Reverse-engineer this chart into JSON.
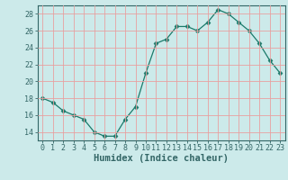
{
  "x": [
    0,
    1,
    2,
    3,
    4,
    5,
    6,
    7,
    8,
    9,
    10,
    11,
    12,
    13,
    14,
    15,
    16,
    17,
    18,
    19,
    20,
    21,
    22,
    23
  ],
  "y": [
    18,
    17.5,
    16.5,
    16,
    15.5,
    14,
    13.5,
    13.5,
    15.5,
    17,
    21,
    24.5,
    25,
    26.5,
    26.5,
    26,
    27,
    28.5,
    28,
    27,
    26,
    24.5,
    22.5,
    21
  ],
  "xlabel": "Humidex (Indice chaleur)",
  "xlim": [
    -0.5,
    23.5
  ],
  "ylim": [
    13.0,
    29.0
  ],
  "yticks": [
    14,
    16,
    18,
    20,
    22,
    24,
    26,
    28
  ],
  "xticks": [
    0,
    1,
    2,
    3,
    4,
    5,
    6,
    7,
    8,
    9,
    10,
    11,
    12,
    13,
    14,
    15,
    16,
    17,
    18,
    19,
    20,
    21,
    22,
    23
  ],
  "line_color": "#1a7a6a",
  "marker": "D",
  "marker_size": 2.5,
  "bg_color": "#cceaea",
  "grid_color": "#e8a0a0",
  "axis_color": "#336666",
  "tick_color": "#336666",
  "xlabel_fontsize": 7.5,
  "tick_fontsize": 6.0
}
